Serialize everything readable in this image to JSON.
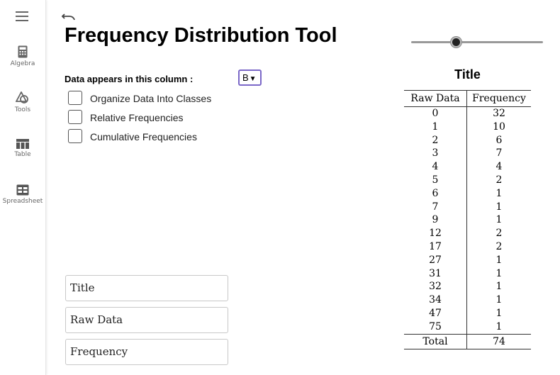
{
  "sidebar": {
    "items": [
      {
        "label": "Algebra",
        "icon": "calculator-icon"
      },
      {
        "label": "Tools",
        "icon": "shapes-icon"
      },
      {
        "label": "Table",
        "icon": "table-icon"
      },
      {
        "label": "Spreadsheet",
        "icon": "spreadsheet-icon"
      }
    ]
  },
  "header": {
    "title": "Frequency Distribution Tool"
  },
  "slider": {
    "value": 0.34
  },
  "controls": {
    "column_label": "Data appears in this column :",
    "column_value": "B",
    "checkboxes": [
      {
        "label": "Organize Data Into Classes",
        "checked": false
      },
      {
        "label": "Relative Frequencies",
        "checked": false
      },
      {
        "label": "Cumulative Frequencies",
        "checked": false
      }
    ]
  },
  "inputs": {
    "title": "Title",
    "raw_data": "Raw Data",
    "frequency": "Frequency"
  },
  "table": {
    "title": "Title",
    "headers": [
      "Raw Data",
      "Frequency"
    ],
    "rows": [
      [
        "0",
        "32"
      ],
      [
        "1",
        "10"
      ],
      [
        "2",
        "6"
      ],
      [
        "3",
        "7"
      ],
      [
        "4",
        "4"
      ],
      [
        "5",
        "2"
      ],
      [
        "6",
        "1"
      ],
      [
        "7",
        "1"
      ],
      [
        "9",
        "1"
      ],
      [
        "12",
        "2"
      ],
      [
        "17",
        "2"
      ],
      [
        "27",
        "1"
      ],
      [
        "31",
        "1"
      ],
      [
        "32",
        "1"
      ],
      [
        "34",
        "1"
      ],
      [
        "47",
        "1"
      ],
      [
        "75",
        "1"
      ]
    ],
    "total": [
      "Total",
      "74"
    ]
  },
  "colors": {
    "accent": "#7b68c8",
    "icon": "#666666",
    "border": "#333333"
  }
}
